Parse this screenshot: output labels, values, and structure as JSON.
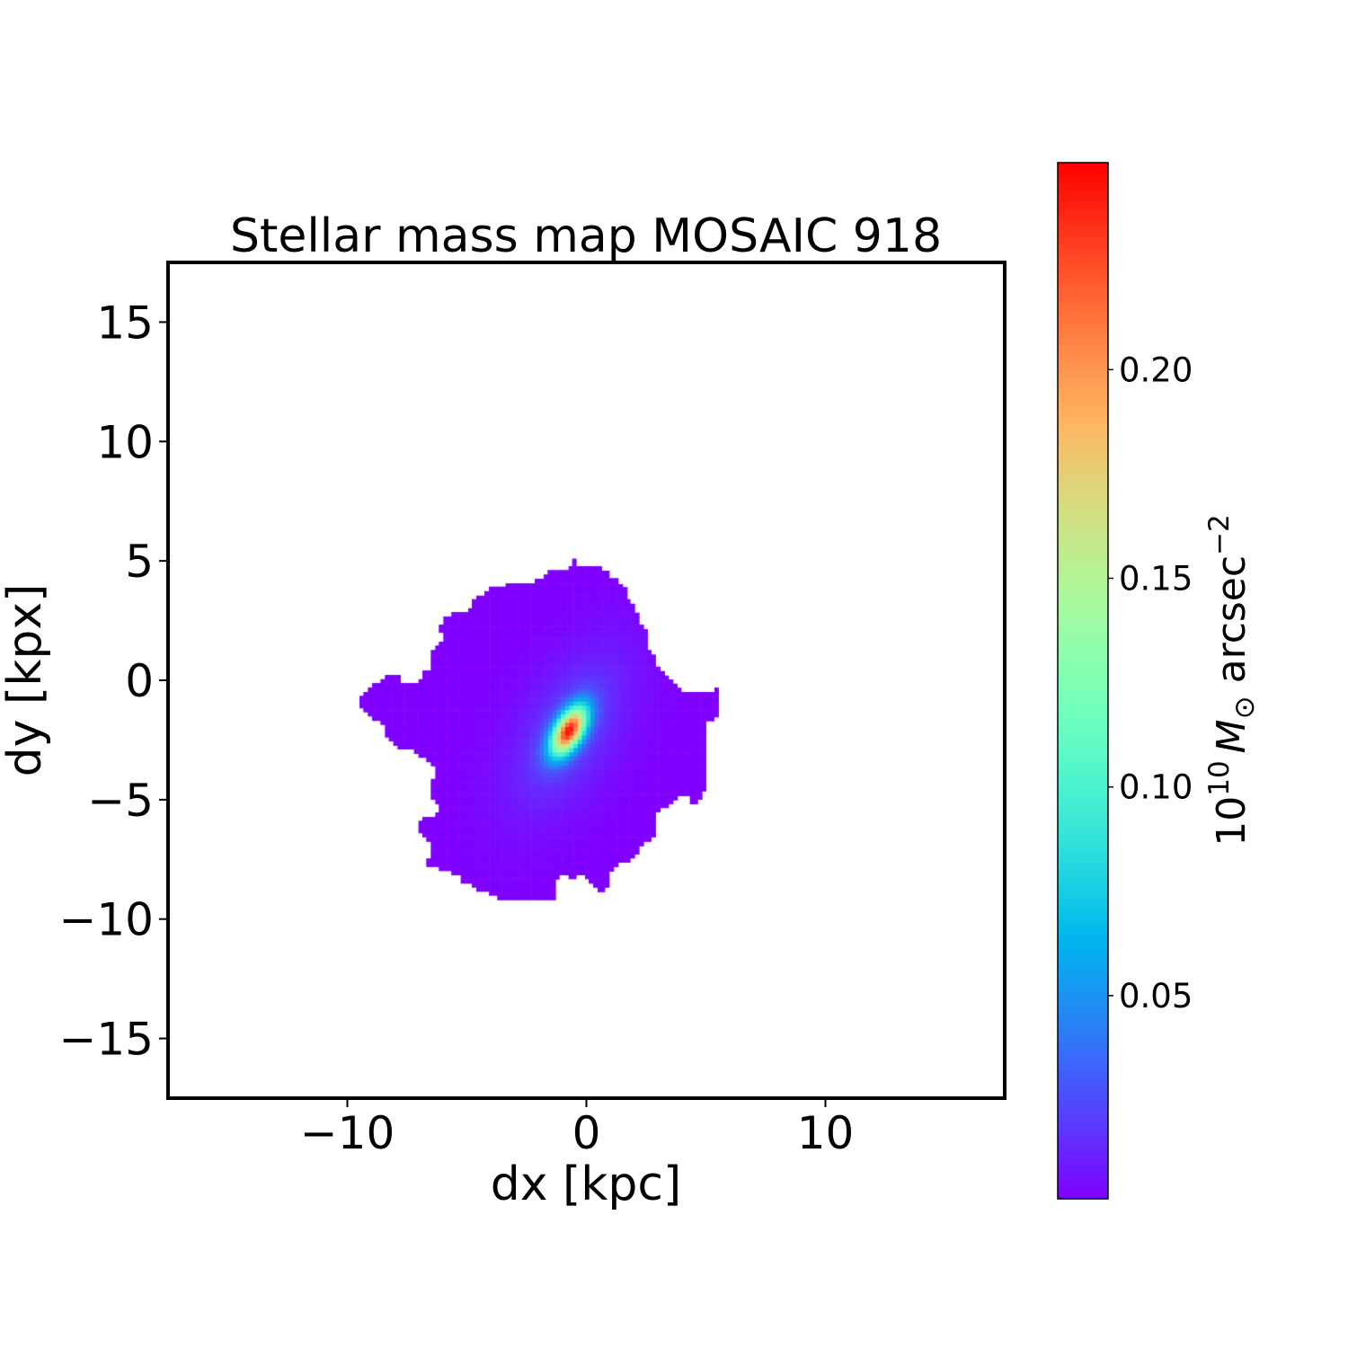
{
  "chart_data": {
    "type": "heatmap",
    "title": "Stellar mass map MOSAIC 918",
    "xlabel": "dx [kpc]",
    "ylabel": "dy [kpx]",
    "xlim": [
      -17.5,
      17.5
    ],
    "ylim": [
      -17.5,
      17.5
    ],
    "xticks": [
      -10,
      0,
      10
    ],
    "xtick_labels": [
      "−10",
      "0",
      "10"
    ],
    "yticks": [
      -15,
      -10,
      -5,
      0,
      5,
      10,
      15
    ],
    "ytick_labels": [
      "−15",
      "−10",
      "−5",
      "0",
      "5",
      "10",
      "15"
    ],
    "colormap": "rainbow",
    "colorbar": {
      "label_base": "10",
      "label_exp": "10",
      "label_unit": "M",
      "label_sub": "⊙",
      "label_rest": " arcsec",
      "label_rest_exp": "−2",
      "range": [
        0.0013,
        0.2496
      ],
      "ticks": [
        0.05,
        0.1,
        0.15,
        0.2
      ],
      "tick_labels": [
        "0.05",
        "0.10",
        "0.15",
        "0.20"
      ]
    },
    "peak": {
      "x": -0.73,
      "y": -2.12,
      "value": 0.2496
    },
    "grid": false
  }
}
